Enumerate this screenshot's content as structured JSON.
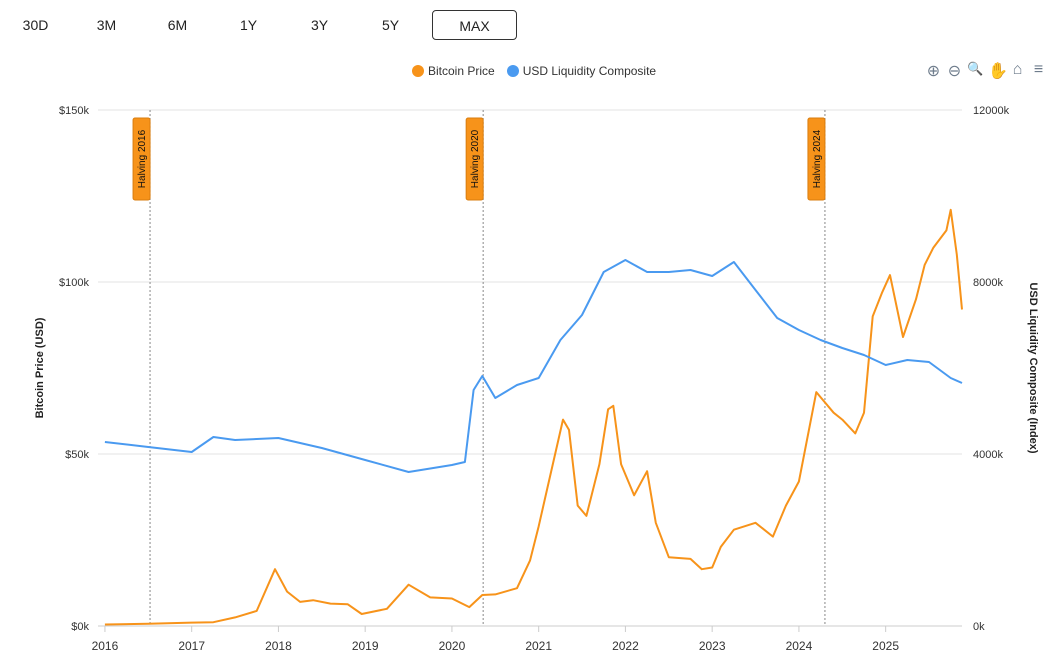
{
  "ranges": [
    {
      "label": "30D"
    },
    {
      "label": "3M"
    },
    {
      "label": "6M"
    },
    {
      "label": "1Y"
    },
    {
      "label": "3Y"
    },
    {
      "label": "5Y"
    },
    {
      "label": "MAX",
      "active": true
    }
  ],
  "toolbar": {
    "icons": [
      "zoom-in-icon",
      "zoom-out-icon",
      "selection-zoom-icon",
      "pan-hand-icon",
      "home-reset-icon",
      "menu-icon"
    ],
    "glyphs": [
      "⊕",
      "⊖",
      "🔍",
      "✋",
      "⌂",
      "≡"
    ],
    "active_color": "#008ffb"
  },
  "legend": [
    {
      "label": "Bitcoin Price",
      "color": "#f7931a"
    },
    {
      "label": "USD Liquidity Composite",
      "color": "#4a9af0"
    }
  ],
  "chart_data": {
    "type": "line",
    "x_ticks": [
      "2016",
      "2017",
      "2018",
      "2019",
      "2020",
      "2021",
      "2022",
      "2023",
      "2024",
      "2025"
    ],
    "xlim": [
      2015.92,
      2025.88
    ],
    "y_left": {
      "label": "Bitcoin Price (USD)",
      "ticks": [
        "$0k",
        "$50k",
        "$100k",
        "$150k"
      ],
      "ylim": [
        0,
        150
      ]
    },
    "y_right": {
      "label": "USD Liquidity Composite (Index)",
      "ticks": [
        "0k",
        "4000k",
        "8000k",
        "12000k"
      ],
      "ylim": [
        0,
        12000
      ]
    },
    "grid": true,
    "legend_position": "top",
    "annotations": [
      {
        "label": "Halving 2016",
        "x": 2016.52
      },
      {
        "label": "Halving 2020",
        "x": 2020.36
      },
      {
        "label": "Halving 2024",
        "x": 2024.3
      }
    ],
    "series": [
      {
        "name": "Bitcoin Price",
        "axis": "left",
        "color": "#f7931a",
        "x": [
          2016.0,
          2016.5,
          2017.0,
          2017.25,
          2017.5,
          2017.75,
          2017.96,
          2018.1,
          2018.25,
          2018.4,
          2018.6,
          2018.8,
          2018.96,
          2019.25,
          2019.5,
          2019.75,
          2020.0,
          2020.2,
          2020.35,
          2020.5,
          2020.75,
          2020.9,
          2021.0,
          2021.1,
          2021.28,
          2021.35,
          2021.45,
          2021.55,
          2021.7,
          2021.8,
          2021.86,
          2021.95,
          2022.1,
          2022.25,
          2022.35,
          2022.5,
          2022.75,
          2022.88,
          2023.0,
          2023.1,
          2023.25,
          2023.5,
          2023.7,
          2023.85,
          2024.0,
          2024.2,
          2024.4,
          2024.5,
          2024.65,
          2024.75,
          2024.85,
          2024.96,
          2025.05,
          2025.2,
          2025.35,
          2025.45,
          2025.55,
          2025.7,
          2025.75,
          2025.82,
          2025.88
        ],
        "values": [
          0.43,
          0.65,
          1.0,
          1.1,
          2.5,
          4.4,
          16.5,
          10,
          7,
          7.5,
          6.5,
          6.3,
          3.5,
          5,
          12,
          8.3,
          8,
          5.5,
          9,
          9.2,
          11,
          19,
          29,
          40,
          60,
          57,
          35,
          32,
          47,
          63,
          64,
          47,
          38,
          45,
          30,
          20,
          19.5,
          16.5,
          17,
          23,
          28,
          30,
          26,
          35,
          42,
          68,
          62,
          60,
          56,
          62,
          90,
          97,
          102,
          84,
          95,
          105,
          110,
          115,
          121,
          108,
          92
        ]
      },
      {
        "name": "USD Liquidity Composite",
        "axis": "right",
        "color": "#4a9af0",
        "x": [
          2016.0,
          2016.5,
          2017.0,
          2017.25,
          2017.5,
          2018.0,
          2018.5,
          2019.0,
          2019.5,
          2020.0,
          2020.15,
          2020.25,
          2020.35,
          2020.5,
          2020.75,
          2021.0,
          2021.25,
          2021.5,
          2021.75,
          2022.0,
          2022.25,
          2022.5,
          2022.75,
          2023.0,
          2023.25,
          2023.5,
          2023.75,
          2024.0,
          2024.25,
          2024.5,
          2024.75,
          2025.0,
          2025.25,
          2025.5,
          2025.75,
          2025.88
        ],
        "values": [
          4279,
          4163,
          4047,
          4395,
          4326,
          4372,
          4140,
          3860,
          3581,
          3744,
          3814,
          5488,
          5814,
          5302,
          5605,
          5767,
          6651,
          7233,
          8233,
          8512,
          8233,
          8233,
          8279,
          8140,
          8465,
          7814,
          7163,
          6884,
          6651,
          6465,
          6302,
          6070,
          6186,
          6140,
          5767,
          5651
        ]
      }
    ]
  }
}
